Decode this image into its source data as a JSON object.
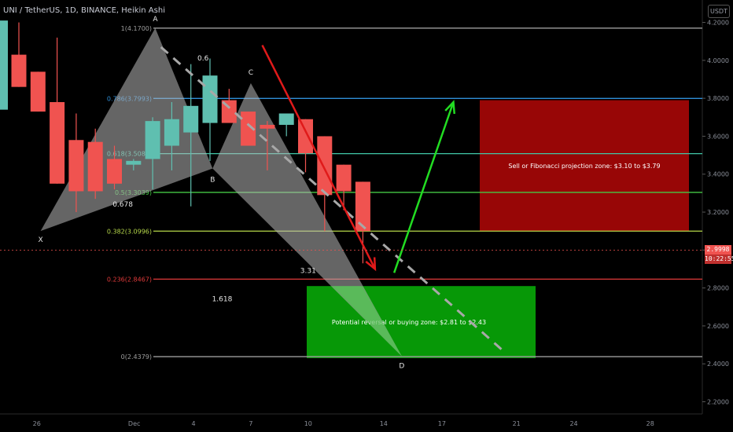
{
  "header": {
    "title": "UNI / TetherUS, 1D, BINANCE, Heikin Ashi",
    "currency": "USDT"
  },
  "price_tag": {
    "value": "2.9998",
    "timer": "10:22:55",
    "color": "#f05350"
  },
  "colors": {
    "bull": "#5fbfb0",
    "bear": "#f05350",
    "up_arrow": "#22dd22",
    "down_arrow": "#e01a1a",
    "pattern": "#b8b8b8",
    "buy_zone": "#07a007",
    "sell_zone": "#a00606"
  },
  "chart_data": {
    "type": "candlestick",
    "title": "UNI / TetherUS, 1D, BINANCE, Heikin Ashi",
    "y_axis": {
      "range": [
        2.14,
        4.31
      ],
      "ticks": [
        4.2,
        4.0,
        3.8,
        3.6,
        3.4,
        3.2,
        3.0,
        2.8,
        2.6,
        2.4,
        2.2
      ],
      "tick_labels": [
        "4.2000",
        "4.0000",
        "3.8000",
        "3.6000",
        "3.4000",
        "3.2000",
        "3.0000",
        "2.8000",
        "2.6000",
        "2.4000",
        "2.2000"
      ]
    },
    "x_axis": {
      "tick_labels": [
        "26",
        "Dec",
        "4",
        "7",
        "10",
        "14",
        "17",
        "21",
        "24",
        "28"
      ]
    },
    "candles": [
      {
        "open": 4.03,
        "high": 4.2,
        "low": 3.86,
        "close": 3.86
      },
      {
        "open": 3.94,
        "high": 3.94,
        "low": 3.73,
        "close": 3.73
      },
      {
        "open": 3.78,
        "high": 4.12,
        "low": 3.35,
        "close": 3.35
      },
      {
        "open": 3.58,
        "high": 3.72,
        "low": 3.2,
        "close": 3.31
      },
      {
        "open": 3.57,
        "high": 3.64,
        "low": 3.27,
        "close": 3.31
      },
      {
        "open": 3.48,
        "high": 3.55,
        "low": 3.32,
        "close": 3.35
      },
      {
        "open": 3.45,
        "high": 3.48,
        "low": 3.42,
        "close": 3.47
      },
      {
        "open": 3.48,
        "high": 3.7,
        "low": 3.32,
        "close": 3.68
      },
      {
        "open": 3.55,
        "high": 3.78,
        "low": 3.42,
        "close": 3.69
      },
      {
        "open": 3.62,
        "high": 3.98,
        "low": 3.23,
        "close": 3.76
      },
      {
        "open": 3.67,
        "high": 4.01,
        "low": 3.47,
        "close": 3.92
      },
      {
        "open": 3.79,
        "high": 3.85,
        "low": 3.69,
        "close": 3.67
      },
      {
        "open": 3.73,
        "high": 3.73,
        "low": 3.55,
        "close": 3.55
      },
      {
        "open": 3.66,
        "high": 3.68,
        "low": 3.42,
        "close": 3.64
      },
      {
        "open": 3.66,
        "high": 3.71,
        "low": 3.6,
        "close": 3.72
      },
      {
        "open": 3.69,
        "high": 3.69,
        "low": 3.41,
        "close": 3.51
      },
      {
        "open": 3.6,
        "high": 3.6,
        "low": 3.1,
        "close": 3.29
      },
      {
        "open": 3.45,
        "high": 3.45,
        "low": 3.21,
        "close": 3.31
      },
      {
        "open": 3.36,
        "high": 3.36,
        "low": 2.93,
        "close": 3.1
      }
    ],
    "fib_levels": [
      {
        "value": 4.17,
        "label": "1(4.1700)",
        "color": "#9e9e9e"
      },
      {
        "value": 3.7993,
        "label": "0.786(3.7993)",
        "color": "#2f8fd8"
      },
      {
        "value": 3.5083,
        "label": "0.618(3.5083)",
        "color": "#40c8a8"
      },
      {
        "value": 3.3039,
        "label": "0.5(3.3039)",
        "color": "#45c845"
      },
      {
        "value": 3.0996,
        "label": "0.382(3.0996)",
        "color": "#b6d84a"
      },
      {
        "value": 2.8467,
        "label": "0.236(2.8467)",
        "color": "#e03a3a"
      },
      {
        "value": 2.4379,
        "label": "0(2.4379)",
        "color": "#9e9e9e"
      }
    ],
    "harmonic_pattern": {
      "points": [
        {
          "label": "X",
          "price": 3.1
        },
        {
          "label": "A",
          "price": 4.17
        },
        {
          "label": "B",
          "price": 3.43
        },
        {
          "label": "C",
          "price": 3.88
        },
        {
          "label": "D",
          "price": 2.44
        }
      ],
      "ratios": [
        "0.6",
        "0.678",
        "3.31",
        "1.618"
      ]
    },
    "zones": [
      {
        "name": "sell",
        "label": "Sell or Fibonacci projection zone: $3.10 to $3.79",
        "top": 3.79,
        "bottom": 3.1
      },
      {
        "name": "buy",
        "label": "Potential reversal or buying zone: $2.81 to $2.43",
        "top": 2.81,
        "bottom": 2.43
      }
    ],
    "current_price": 2.9998
  }
}
